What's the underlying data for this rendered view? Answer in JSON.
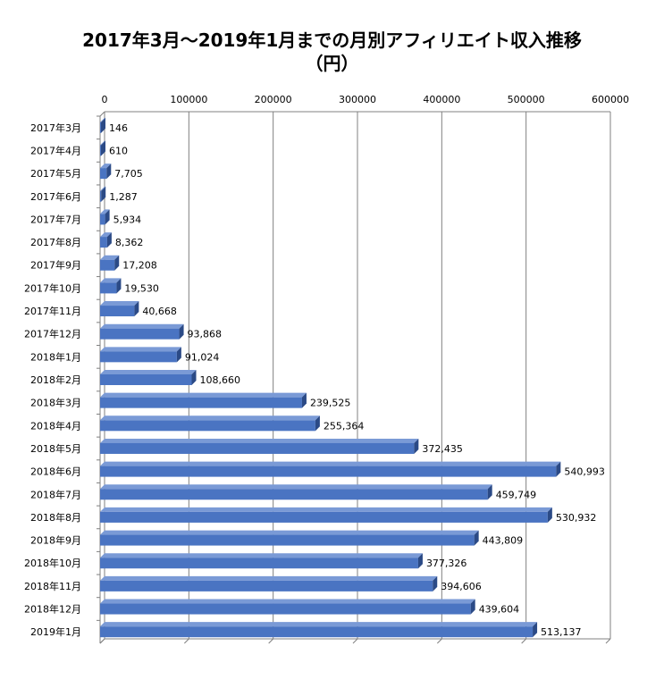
{
  "title": {
    "line1": "2017年3月～2019年1月までの月別アフィリエイト収入推移",
    "line2": "（円）"
  },
  "colors": {
    "bar_front": "#4a74c2",
    "bar_top": "#7a9ad6",
    "bar_side": "#2b4a86",
    "axis": "#7f7f7f",
    "grid": "#808080"
  },
  "chart_data": {
    "type": "bar",
    "orientation": "horizontal",
    "title": "2017年3月～2019年1月までの月別アフィリエイト収入推移（円）",
    "xlim": [
      0,
      600000
    ],
    "x_ticks": [
      "0",
      "100000",
      "200000",
      "300000",
      "400000",
      "500000",
      "600000"
    ],
    "x_tick_values": [
      0,
      100000,
      200000,
      300000,
      400000,
      500000,
      600000
    ],
    "grid": true,
    "categories": [
      "2017年3月",
      "2017年4月",
      "2017年5月",
      "2017年6月",
      "2017年7月",
      "2017年8月",
      "2017年9月",
      "2017年10月",
      "2017年11月",
      "2017年12月",
      "2018年1月",
      "2018年2月",
      "2018年3月",
      "2018年4月",
      "2018年5月",
      "2018年6月",
      "2018年7月",
      "2018年8月",
      "2018年9月",
      "2018年10月",
      "2018年11月",
      "2018年12月",
      "2019年1月"
    ],
    "values": [
      146,
      610,
      7705,
      1287,
      5934,
      8362,
      17208,
      19530,
      40668,
      93868,
      91024,
      108660,
      239525,
      255364,
      372435,
      540993,
      459749,
      530932,
      443809,
      377326,
      394606,
      439604,
      513137
    ],
    "value_labels": [
      "146",
      "610",
      "7,705",
      "1,287",
      "5,934",
      "8,362",
      "17,208",
      "19,530",
      "40,668",
      "93,868",
      "91,024",
      "108,660",
      "239,525",
      "255,364",
      "372,435",
      "540,993",
      "459,749",
      "530,932",
      "443,809",
      "377,326",
      "394,606",
      "439,604",
      "513,137"
    ]
  }
}
